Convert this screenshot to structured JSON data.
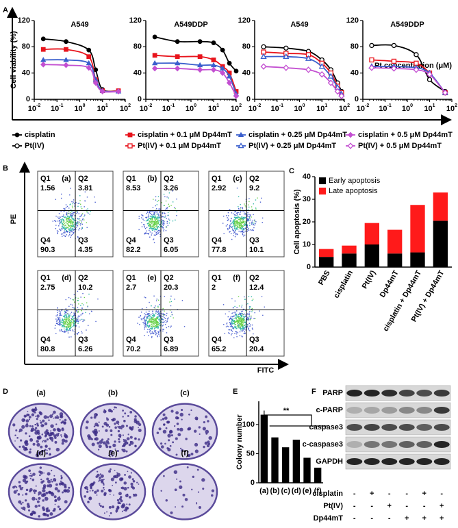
{
  "panel_labels": [
    "A",
    "B",
    "C",
    "D",
    "E",
    "F"
  ],
  "chart_data": [
    {
      "type": "line",
      "title": "A549",
      "ylabel": "Cell viability (%)",
      "xscale": "log",
      "marker_fill": "filled",
      "xlim": [
        0.01,
        100
      ],
      "xticks": [
        {
          "value": 0.01,
          "label": "10",
          "exponent": "-2"
        },
        {
          "value": 0.1,
          "label": "10",
          "exponent": "-1"
        },
        {
          "value": 1,
          "label": "10",
          "exponent": "0"
        },
        {
          "value": 10,
          "label": "10",
          "exponent": "1"
        },
        {
          "value": 100,
          "label": "10",
          "exponent": "2"
        }
      ],
      "ylim": [
        0,
        120
      ],
      "yticks": [
        0,
        40,
        80,
        120
      ],
      "x": [
        0.025,
        0.25,
        2.5,
        5,
        10,
        50
      ],
      "series": [
        {
          "name": "cisplatin",
          "color": "#000000",
          "shape": "circle",
          "values": [
            92,
            88,
            75,
            45,
            15,
            13
          ]
        },
        {
          "name": "cisplatin + 0.1 μM Dp44mT",
          "color": "#e8141c",
          "shape": "square",
          "values": [
            76,
            76,
            65,
            30,
            13,
            13
          ]
        },
        {
          "name": "cisplatin + 0.25 μM Dp44mT",
          "color": "#3a5fcd",
          "shape": "triangle",
          "values": [
            60,
            60,
            55,
            30,
            13,
            12
          ]
        },
        {
          "name": "cisplatin + 0.5 μM Dp44mT",
          "color": "#c34fd1",
          "shape": "diamond",
          "values": [
            53,
            52,
            48,
            25,
            12,
            12
          ]
        }
      ]
    },
    {
      "type": "line",
      "title": "A549DDP",
      "xscale": "log",
      "marker_fill": "filled",
      "xlim": [
        0.01,
        100
      ],
      "xticks": [
        {
          "value": 0.01,
          "label": "10",
          "exponent": "-2"
        },
        {
          "value": 0.1,
          "label": "10",
          "exponent": "-1"
        },
        {
          "value": 1,
          "label": "10",
          "exponent": "0"
        },
        {
          "value": 10,
          "label": "10",
          "exponent": "1"
        },
        {
          "value": 100,
          "label": "10",
          "exponent": "2"
        }
      ],
      "ylim": [
        0,
        120
      ],
      "yticks": [
        0,
        40,
        80,
        120
      ],
      "x": [
        0.025,
        0.25,
        2.5,
        10,
        25,
        50,
        100
      ],
      "series": [
        {
          "color": "#000000",
          "shape": "circle",
          "values": [
            95,
            88,
            88,
            86,
            75,
            55,
            43
          ]
        },
        {
          "color": "#e8141c",
          "shape": "square",
          "values": [
            67,
            65,
            65,
            60,
            50,
            40,
            12
          ]
        },
        {
          "color": "#3a5fcd",
          "shape": "triangle",
          "values": [
            55,
            55,
            52,
            52,
            47,
            35,
            8
          ]
        },
        {
          "color": "#c34fd1",
          "shape": "diamond",
          "values": [
            47,
            47,
            45,
            45,
            40,
            25,
            5
          ]
        }
      ]
    },
    {
      "type": "line",
      "title": "A549",
      "xscale": "log",
      "marker_fill": "open",
      "xlim": [
        0.01,
        100
      ],
      "xticks": [
        {
          "value": 0.01,
          "label": "10",
          "exponent": "-2"
        },
        {
          "value": 0.1,
          "label": "10",
          "exponent": "-1"
        },
        {
          "value": 1,
          "label": "10",
          "exponent": "0"
        },
        {
          "value": 10,
          "label": "10",
          "exponent": "1"
        },
        {
          "value": 100,
          "label": "10",
          "exponent": "2"
        }
      ],
      "ylim": [
        0,
        120
      ],
      "yticks": [
        0,
        40,
        80,
        120
      ],
      "x": [
        0.025,
        0.25,
        2.5,
        10,
        25,
        50,
        75
      ],
      "series": [
        {
          "name": "Pt(IV)",
          "color": "#000000",
          "shape": "circle",
          "values": [
            80,
            78,
            73,
            60,
            45,
            25,
            12
          ]
        },
        {
          "name": "Pt(IV) + 0.1 μM Dp44mT",
          "color": "#e8141c",
          "shape": "square",
          "values": [
            72,
            70,
            68,
            55,
            40,
            20,
            10
          ]
        },
        {
          "name": "Pt(IV) + 0.25 μM Dp44mT",
          "color": "#3a5fcd",
          "shape": "triangle",
          "values": [
            65,
            65,
            62,
            50,
            35,
            18,
            8
          ]
        },
        {
          "name": "Pt(IV) + 0.5 μM Dp44mT",
          "color": "#c34fd1",
          "shape": "diamond",
          "values": [
            50,
            48,
            45,
            38,
            25,
            12,
            5
          ]
        }
      ]
    },
    {
      "type": "line",
      "title": "A549DDP",
      "xlabel": "Pt concentration (μM)",
      "xscale": "log",
      "marker_fill": "open",
      "xlim": [
        0.01,
        100
      ],
      "xticks": [
        {
          "value": 0.01,
          "label": "10",
          "exponent": "-2"
        },
        {
          "value": 0.1,
          "label": "10",
          "exponent": "-1"
        },
        {
          "value": 1,
          "label": "10",
          "exponent": "0"
        },
        {
          "value": 10,
          "label": "10",
          "exponent": "1"
        },
        {
          "value": 100,
          "label": "10",
          "exponent": "2"
        }
      ],
      "ylim": [
        0,
        120
      ],
      "yticks": [
        0,
        40,
        80,
        120
      ],
      "x": [
        0.025,
        0.25,
        2.5,
        10,
        50
      ],
      "series": [
        {
          "color": "#000000",
          "shape": "circle",
          "values": [
            82,
            82,
            68,
            30,
            12
          ]
        },
        {
          "color": "#e8141c",
          "shape": "square",
          "values": [
            60,
            58,
            55,
            40,
            10
          ]
        },
        {
          "color": "#3a5fcd",
          "shape": "triangle",
          "values": [
            50,
            50,
            48,
            40,
            10
          ]
        },
        {
          "color": "#c34fd1",
          "shape": "diamond",
          "values": [
            48,
            47,
            45,
            38,
            10
          ]
        }
      ]
    },
    {
      "type": "stacked_bar",
      "ylabel": "Cell apoptosis (%)",
      "categories": [
        "PBS",
        "cisplatin",
        "Pt(IV)",
        "Dp44mT",
        "cisplatin + Dp44mT",
        "Pt(IV) + Dp44mT"
      ],
      "ylim": [
        0,
        40
      ],
      "yticks": [
        0,
        10,
        20,
        30,
        40
      ],
      "legend": "upper left",
      "series": [
        {
          "name": "Early apoptosis",
          "color": "#000000",
          "values": [
            4.5,
            6,
            10,
            6,
            6.5,
            20.5
          ]
        },
        {
          "name": "Late apoptosis",
          "color": "#ff1a1a",
          "values": [
            3.5,
            3.5,
            9.5,
            10.5,
            21,
            12.5
          ]
        }
      ]
    },
    {
      "type": "bar",
      "ylabel": "Colony number",
      "annotation": "**",
      "color": "#000000",
      "categories": [
        "(a)",
        "(b)",
        "(c)",
        "(d)",
        "(e)",
        "(f)"
      ],
      "values": [
        117,
        78,
        61,
        74,
        43,
        26
      ],
      "ylim": [
        0,
        140
      ],
      "yticks": [
        0,
        50,
        100
      ]
    }
  ],
  "flow_cytometry": {
    "xlabel": "FITC",
    "ylabel": "PE",
    "quadrant_names": [
      "Q1",
      "Q2",
      "Q3",
      "Q4"
    ],
    "plots": [
      {
        "label": "(a)",
        "quadrants": [
          1.56,
          3.81,
          4.35,
          90.3
        ]
      },
      {
        "label": "(b)",
        "quadrants": [
          8.53,
          3.26,
          6.05,
          82.2
        ]
      },
      {
        "label": "(c)",
        "quadrants": [
          2.92,
          9.2,
          10.1,
          77.8
        ]
      },
      {
        "label": "(d)",
        "quadrants": [
          2.75,
          10.2,
          6.26,
          80.8
        ]
      },
      {
        "label": "(e)",
        "quadrants": [
          2.7,
          20.3,
          6.89,
          70.2
        ]
      },
      {
        "label": "(f)",
        "quadrants": [
          2.0,
          12.4,
          20.4,
          65.2
        ]
      }
    ]
  },
  "colony_images": [
    "(a)",
    "(b)",
    "(c)",
    "(d)",
    "(e)",
    "(f)"
  ],
  "western_blot": {
    "bands": [
      "PARP",
      "c-PARP",
      "caspase3",
      "c-caspase3",
      "GAPDH"
    ],
    "treatments": [
      {
        "name": "cisplatin",
        "signs": [
          "-",
          "+",
          "-",
          "-",
          "+",
          "-"
        ]
      },
      {
        "name": "Pt(IV)",
        "signs": [
          "-",
          "-",
          "+",
          "-",
          "-",
          "+"
        ]
      },
      {
        "name": "Dp44mT",
        "signs": [
          "-",
          "-",
          "-",
          "+",
          "+",
          "+"
        ]
      }
    ]
  }
}
